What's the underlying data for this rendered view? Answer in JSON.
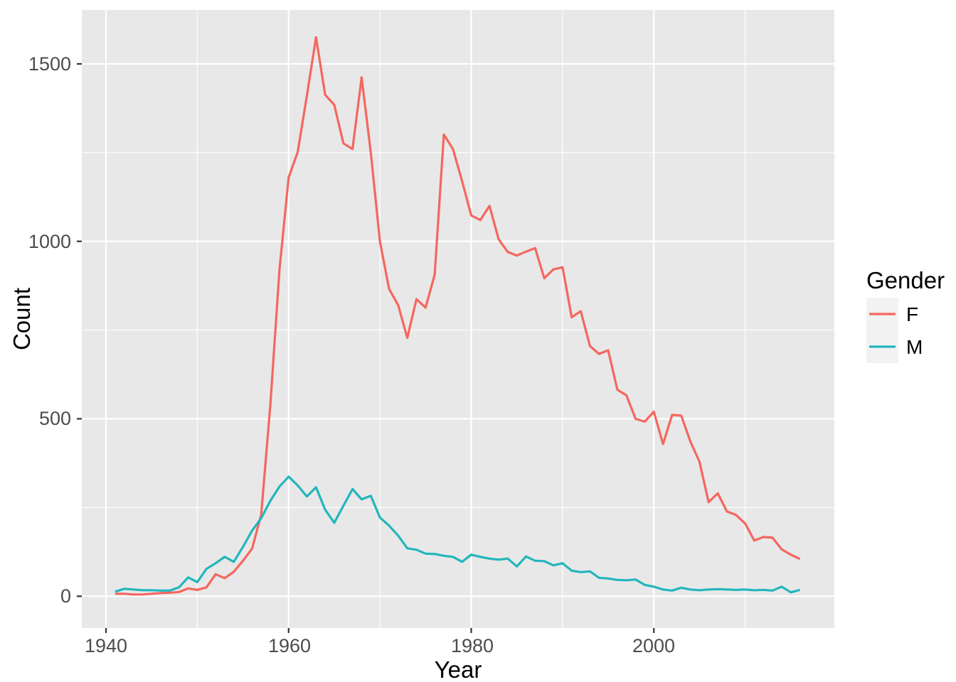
{
  "chart_data": {
    "type": "line",
    "title": "",
    "xlabel": "Year",
    "ylabel": "Count",
    "legend_title": "Gender",
    "legend_position": "right",
    "panel_bg": "#e8e8e8",
    "grid_color": "#ffffff",
    "grid": true,
    "tick_color": "#333333",
    "tick_label_color": "#4d4d4d",
    "legend_key_bg": "#f2f2f2",
    "xlim": [
      1937.35,
      2019.77
    ],
    "ylim": [
      -89.5,
      1652
    ],
    "x_ticks": [
      1940,
      1960,
      1980,
      2000
    ],
    "x_minor_ticks": [
      1950,
      1970,
      1990,
      2010
    ],
    "y_ticks": [
      0,
      500,
      1000,
      1500
    ],
    "y_minor_ticks": [
      250,
      750,
      1250
    ],
    "x": [
      1941,
      1942,
      1943,
      1944,
      1945,
      1946,
      1947,
      1948,
      1949,
      1950,
      1951,
      1952,
      1953,
      1954,
      1955,
      1956,
      1957,
      1958,
      1959,
      1960,
      1961,
      1962,
      1963,
      1964,
      1965,
      1966,
      1967,
      1968,
      1969,
      1970,
      1971,
      1972,
      1973,
      1974,
      1975,
      1976,
      1977,
      1978,
      1979,
      1980,
      1981,
      1982,
      1983,
      1984,
      1985,
      1986,
      1987,
      1988,
      1989,
      1990,
      1991,
      1992,
      1993,
      1994,
      1995,
      1996,
      1997,
      1998,
      1999,
      2000,
      2001,
      2002,
      2003,
      2004,
      2005,
      2006,
      2007,
      2008,
      2009,
      2010,
      2011,
      2012,
      2013,
      2014,
      2015,
      2016
    ],
    "series": [
      {
        "name": "F",
        "color": "#f4675f",
        "values": [
          7,
          7,
          5,
          5,
          7,
          9,
          10,
          12,
          22,
          18,
          25,
          62,
          51,
          69,
          100,
          134,
          230,
          540,
          920,
          1180,
          1252,
          1410,
          1575,
          1413,
          1385,
          1276,
          1260,
          1462,
          1250,
          1000,
          866,
          820,
          728,
          837,
          813,
          906,
          1301,
          1260,
          1170,
          1073,
          1060,
          1100,
          1006,
          970,
          960,
          971,
          981,
          896,
          921,
          927,
          786,
          803,
          705,
          683,
          693,
          582,
          566,
          500,
          492,
          520,
          429,
          511,
          509,
          436,
          379,
          265,
          290,
          239,
          229,
          205,
          157,
          167,
          165,
          132,
          117,
          105
        ]
      },
      {
        "name": "M",
        "color": "#22b6bc",
        "values": [
          13,
          21,
          19,
          17,
          17,
          16,
          16,
          25,
          53,
          40,
          77,
          93,
          111,
          97,
          139,
          185,
          220,
          269,
          309,
          337,
          312,
          281,
          307,
          244,
          207,
          255,
          302,
          273,
          283,
          222,
          199,
          171,
          135,
          131,
          120,
          119,
          114,
          111,
          97,
          117,
          111,
          106,
          103,
          106,
          84,
          112,
          100,
          99,
          87,
          93,
          72,
          68,
          70,
          52,
          50,
          46,
          45,
          47,
          32,
          27,
          19,
          16,
          24,
          19,
          17,
          19,
          20,
          19,
          18,
          19,
          17,
          18,
          16,
          27,
          11,
          18
        ]
      }
    ]
  },
  "labels": {
    "xlabel": "Year",
    "ylabel": "Count",
    "legend_title": "Gender",
    "legend_items": [
      "F",
      "M"
    ],
    "y_tick_labels": [
      "0",
      "500",
      "1000",
      "1500"
    ],
    "x_tick_labels": [
      "1940",
      "1960",
      "1980",
      "2000"
    ]
  }
}
